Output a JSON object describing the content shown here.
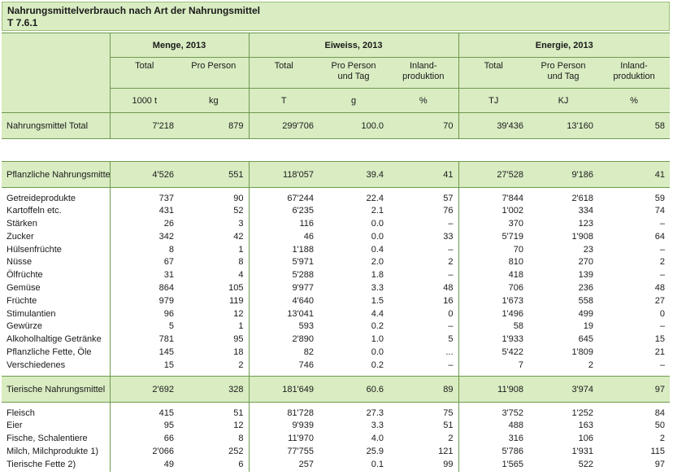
{
  "title": "Nahrungsmittelverbrauch nach Art der Nahrungsmittel",
  "table_id": "T 7.6.1",
  "groups": {
    "menge": "Menge, 2013",
    "eiweiss": "Eiweiss, 2013",
    "energie": "Energie, 2013"
  },
  "subheaders": {
    "menge_total": "Total",
    "menge_pro_person": "Pro Person",
    "eiweiss_total": "Total",
    "eiweiss_pro_person": "Pro Person und Tag",
    "eiweiss_inland": "Inland-produktion",
    "energie_total": "Total",
    "energie_pro_person": "Pro Person und Tag",
    "energie_inland": "Inland-produktion"
  },
  "units": {
    "menge_total": "1000 t",
    "menge_pro_person": "kg",
    "eiweiss_total": "T",
    "eiweiss_pro_person": "g",
    "eiweiss_inland": "%",
    "energie_total": "TJ",
    "energie_pro_person": "KJ",
    "energie_inland": "%"
  },
  "total_row": [
    "Nahrungsmittel Total",
    "7'218",
    "879",
    "299'706",
    "100.0",
    "70",
    "39'436",
    "13'160",
    "58"
  ],
  "pflanzlich_row": [
    "Pflanzliche Nahrungsmitte",
    "4'526",
    "551",
    "118'057",
    "39.4",
    "41",
    "27'528",
    "9'186",
    "41"
  ],
  "pflanzlich_items": [
    [
      "Getreideprodukte",
      "737",
      "90",
      "67'244",
      "22.4",
      "57",
      "7'844",
      "2'618",
      "59"
    ],
    [
      "Kartoffeln etc.",
      "431",
      "52",
      "6'235",
      "2.1",
      "76",
      "1'002",
      "334",
      "74"
    ],
    [
      "Stärken",
      "26",
      "3",
      "116",
      "0.0",
      "–",
      "370",
      "123",
      "–"
    ],
    [
      "Zucker",
      "342",
      "42",
      "46",
      "0.0",
      "33",
      "5'719",
      "1'908",
      "64"
    ],
    [
      "Hülsenfrüchte",
      "8",
      "1",
      "1'188",
      "0.4",
      "–",
      "70",
      "23",
      "–"
    ],
    [
      "Nüsse",
      "67",
      "8",
      "5'971",
      "2.0",
      "2",
      "810",
      "270",
      "2"
    ],
    [
      "Ölfrüchte",
      "31",
      "4",
      "5'288",
      "1.8",
      "–",
      "418",
      "139",
      "–"
    ],
    [
      "Gemüse",
      "864",
      "105",
      "9'977",
      "3.3",
      "48",
      "706",
      "236",
      "48"
    ],
    [
      "Früchte",
      "979",
      "119",
      "4'640",
      "1.5",
      "16",
      "1'673",
      "558",
      "27"
    ],
    [
      "Stimulantien",
      "96",
      "12",
      "13'041",
      "4.4",
      "0",
      "1'496",
      "499",
      "0"
    ],
    [
      "Gewürze",
      "5",
      "1",
      "593",
      "0.2",
      "–",
      "58",
      "19",
      "–"
    ],
    [
      "Alkoholhaltige Getränke",
      "781",
      "95",
      "2'890",
      "1.0",
      "5",
      "1'933",
      "645",
      "15"
    ],
    [
      "Pflanzliche Fette, Öle",
      "145",
      "18",
      "82",
      "0.0",
      "...",
      "5'422",
      "1'809",
      "21"
    ],
    [
      "Verschiedenes",
      "15",
      "2",
      "746",
      "0.2",
      "–",
      "7",
      "2",
      "–"
    ]
  ],
  "tierisch_row": [
    "Tierische Nahrungsmittel",
    "2'692",
    "328",
    "181'649",
    "60.6",
    "89",
    "11'908",
    "3'974",
    "97"
  ],
  "tierisch_items": [
    [
      "Fleisch",
      "415",
      "51",
      "81'728",
      "27.3",
      "75",
      "3'752",
      "1'252",
      "84"
    ],
    [
      "Eier",
      "95",
      "12",
      "9'939",
      "3.3",
      "51",
      "488",
      "163",
      "50"
    ],
    [
      "Fische, Schalentiere",
      "66",
      "8",
      "11'970",
      "4.0",
      "2",
      "316",
      "106",
      "2"
    ],
    [
      "Milch, Milchprodukte 1)",
      "2'066",
      "252",
      "77'755",
      "25.9",
      "121",
      "5'786",
      "1'931",
      "115"
    ],
    [
      "Tierische Fette 2)",
      "49",
      "6",
      "257",
      "0.1",
      "99",
      "1'565",
      "522",
      "97"
    ]
  ],
  "colors": {
    "header_bg": "#d9ecc2",
    "border": "#6e9a4d"
  }
}
